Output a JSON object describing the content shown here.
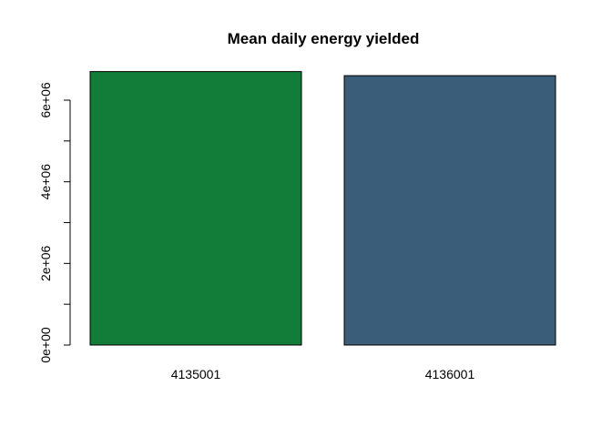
{
  "chart_data": {
    "type": "bar",
    "title": "Mean daily energy yielded",
    "xlabel": "",
    "ylabel": "",
    "categories": [
      "4135001",
      "4136001"
    ],
    "values": [
      6700000,
      6600000
    ],
    "colors": [
      "#127c39",
      "#3a5d79"
    ],
    "ylim": [
      0,
      7000000
    ],
    "y_ticks": [
      0,
      2000000,
      4000000,
      6000000
    ],
    "y_minor_ticks": [
      1000000,
      3000000,
      5000000
    ],
    "y_tick_labels": [
      "0e+00",
      "2e+06",
      "4e+06",
      "6e+06"
    ],
    "grid": false,
    "legend": "none"
  }
}
